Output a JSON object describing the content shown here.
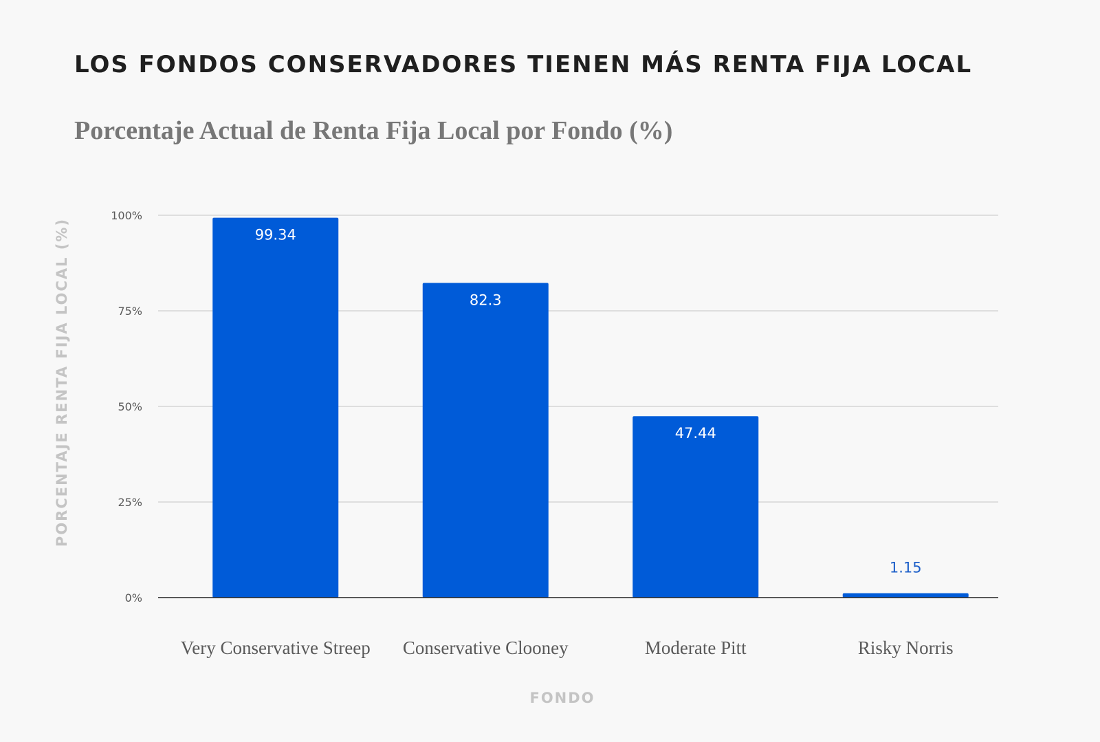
{
  "title": "LOS FONDOS CONSERVADORES TIENEN MÁS RENTA FIJA LOCAL",
  "subtitle": "Porcentaje Actual de Renta Fija Local por Fondo (%)",
  "colors": {
    "bar": "#005bd8",
    "label_inside": "#ffffff",
    "label_outside": "#1d5fc9",
    "grid": "#d6d6d6",
    "baseline": "#222222"
  },
  "chart_data": {
    "type": "bar",
    "title": "Porcentaje Actual de Renta Fija Local por Fondo (%)",
    "categories": [
      "Very Conservative Streep",
      "Conservative Clooney",
      "Moderate Pitt",
      "Risky Norris"
    ],
    "values": [
      99.34,
      82.3,
      47.44,
      1.15
    ],
    "value_labels": [
      "99.34",
      "82.3",
      "47.44",
      "1.15"
    ],
    "xlabel": "FONDO",
    "ylabel": "PORCENTAJE RENTA FIJA LOCAL (%)",
    "ylim": [
      0,
      100
    ],
    "yticks": [
      0,
      25,
      50,
      75,
      100
    ],
    "ytick_labels": [
      "0%",
      "25%",
      "50%",
      "75%",
      "100%"
    ],
    "grid": true,
    "legend": "none"
  }
}
